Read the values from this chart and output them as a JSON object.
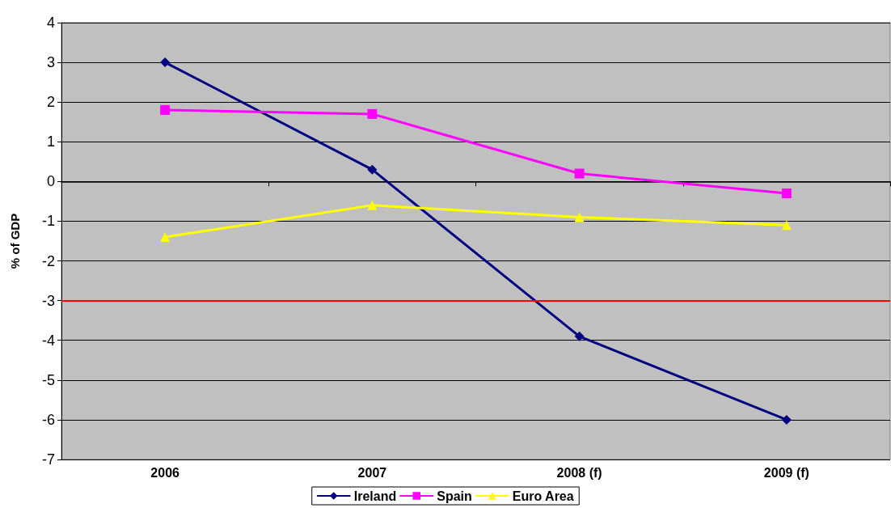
{
  "chart_data": {
    "type": "line",
    "ylabel": "% of GDP",
    "categories": [
      "2006",
      "2007",
      "2008 (f)",
      "2009 (f)"
    ],
    "series": [
      {
        "name": "Ireland",
        "color": "#000080",
        "marker": "diamond",
        "values": [
          3,
          0.3,
          -3.9,
          -6
        ]
      },
      {
        "name": "Spain",
        "color": "#ff00ff",
        "marker": "square",
        "values": [
          1.8,
          1.7,
          0.2,
          -0.3
        ]
      },
      {
        "name": "Euro Area",
        "color": "#ffff00",
        "marker": "triangle",
        "values": [
          -1.4,
          -0.6,
          -0.9,
          -1.1
        ]
      }
    ],
    "ylim": [
      -7,
      4
    ],
    "yticks": [
      -7,
      -6,
      -5,
      -4,
      -3,
      -2,
      -1,
      0,
      1,
      2,
      3,
      4
    ],
    "ref_lines": [
      {
        "axis": "y",
        "value": -3,
        "color": "#ff0000",
        "line_style": "solid"
      }
    ],
    "grid": "y",
    "legend": "bottom",
    "line_style": "solid"
  }
}
